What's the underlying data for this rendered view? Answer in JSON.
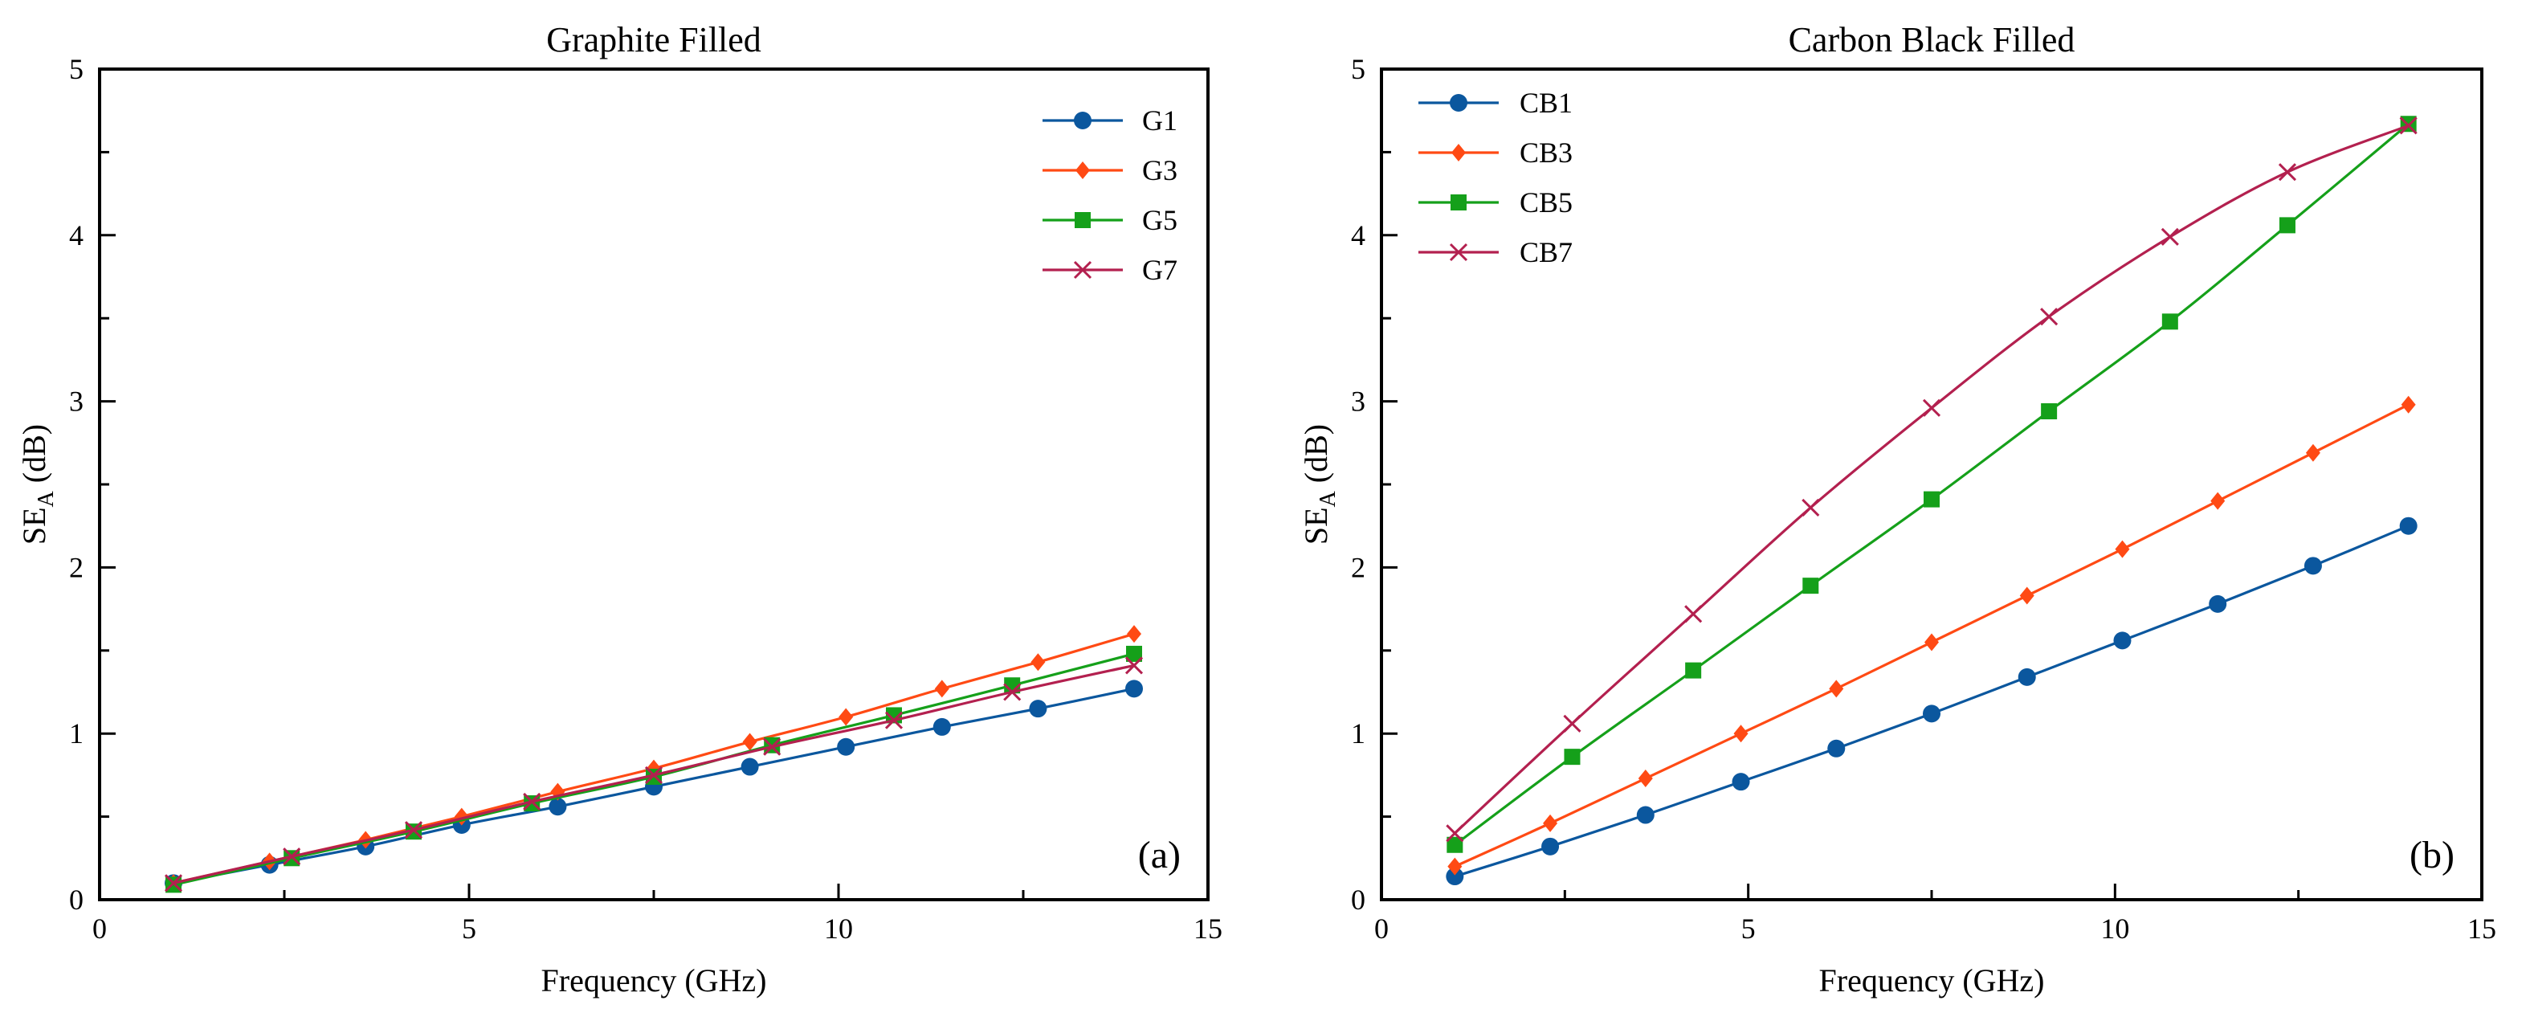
{
  "chart_data": [
    {
      "type": "line",
      "title": "Graphite Filled",
      "panel_label": "(a)",
      "xlabel": "Frequency (GHz)",
      "ylabel_main": "SE",
      "ylabel_sub": "A",
      "ylabel_unit": " (dB)",
      "xlim": [
        0,
        15
      ],
      "ylim": [
        0,
        5
      ],
      "xticks": [
        "0",
        "5",
        "10",
        "15"
      ],
      "yticks": [
        "0",
        "1",
        "2",
        "3",
        "4",
        "5"
      ],
      "legend_position": "top-right",
      "series": [
        {
          "name": "G1",
          "color": "#0b579e",
          "marker": "circle",
          "x": [
            1.0,
            2.3,
            3.6,
            4.9,
            6.2,
            7.5,
            8.8,
            10.1,
            11.4,
            12.7,
            14.0
          ],
          "y": [
            0.1,
            0.21,
            0.32,
            0.45,
            0.56,
            0.68,
            0.8,
            0.92,
            1.04,
            1.15,
            1.27
          ]
        },
        {
          "name": "G3",
          "color": "#ff4a14",
          "marker": "diamond",
          "x": [
            1.0,
            2.3,
            3.6,
            4.9,
            6.2,
            7.5,
            8.8,
            10.1,
            11.4,
            12.7,
            14.0
          ],
          "y": [
            0.1,
            0.23,
            0.36,
            0.5,
            0.65,
            0.79,
            0.95,
            1.1,
            1.27,
            1.43,
            1.6
          ]
        },
        {
          "name": "G5",
          "color": "#15a01a",
          "marker": "square",
          "x": [
            1.0,
            2.6,
            4.25,
            5.85,
            7.5,
            9.1,
            10.75,
            12.35,
            14.0
          ],
          "y": [
            0.09,
            0.25,
            0.41,
            0.58,
            0.74,
            0.93,
            1.11,
            1.29,
            1.48
          ]
        },
        {
          "name": "G7",
          "color": "#b3204f",
          "marker": "x",
          "x": [
            1.0,
            2.6,
            4.25,
            5.85,
            7.5,
            9.1,
            10.75,
            12.35,
            14.0
          ],
          "y": [
            0.1,
            0.26,
            0.42,
            0.59,
            0.75,
            0.92,
            1.08,
            1.25,
            1.41
          ]
        }
      ]
    },
    {
      "type": "line",
      "title": "Carbon Black Filled",
      "panel_label": "(b)",
      "xlabel": "Frequency (GHz)",
      "ylabel_main": "SE",
      "ylabel_sub": "A",
      "ylabel_unit": " (dB)",
      "xlim": [
        0,
        15
      ],
      "ylim": [
        0,
        5
      ],
      "xticks": [
        "0",
        "5",
        "10",
        "15"
      ],
      "yticks": [
        "0",
        "1",
        "2",
        "3",
        "4",
        "5"
      ],
      "legend_position": "top-left",
      "series": [
        {
          "name": "CB1",
          "color": "#0b579e",
          "marker": "circle",
          "x": [
            1.0,
            2.3,
            3.6,
            4.9,
            6.2,
            7.5,
            8.8,
            10.1,
            11.4,
            12.7,
            14.0
          ],
          "y": [
            0.14,
            0.32,
            0.51,
            0.71,
            0.91,
            1.12,
            1.34,
            1.56,
            1.78,
            2.01,
            2.25
          ]
        },
        {
          "name": "CB3",
          "color": "#ff4a14",
          "marker": "diamond",
          "x": [
            1.0,
            2.3,
            3.6,
            4.9,
            6.2,
            7.5,
            8.8,
            10.1,
            11.4,
            12.7,
            14.0
          ],
          "y": [
            0.2,
            0.46,
            0.73,
            1.0,
            1.27,
            1.55,
            1.83,
            2.11,
            2.4,
            2.69,
            2.98
          ]
        },
        {
          "name": "CB5",
          "color": "#15a01a",
          "marker": "square",
          "x": [
            1.0,
            2.6,
            4.25,
            5.85,
            7.5,
            9.1,
            10.75,
            12.35,
            14.0
          ],
          "y": [
            0.33,
            0.86,
            1.38,
            1.89,
            2.41,
            2.94,
            3.48,
            4.06,
            4.67
          ]
        },
        {
          "name": "CB7",
          "color": "#b3204f",
          "marker": "x",
          "x": [
            1.0,
            2.6,
            4.25,
            5.85,
            7.5,
            9.1,
            10.75,
            12.35,
            14.0
          ],
          "y": [
            0.4,
            1.06,
            1.72,
            2.36,
            2.96,
            3.51,
            3.99,
            4.38,
            4.66
          ]
        }
      ]
    }
  ]
}
